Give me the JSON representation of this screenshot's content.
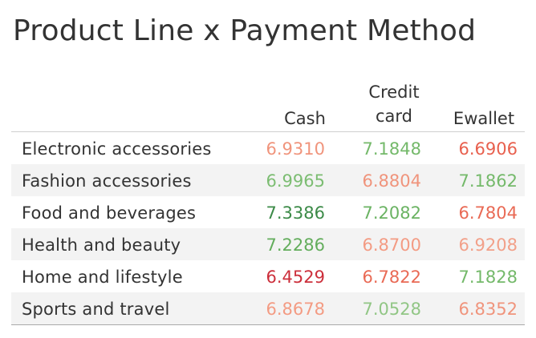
{
  "chart_data": {
    "type": "table",
    "title": "Product Line x Payment Method",
    "columns": [
      {
        "key": "cash",
        "line1": "",
        "line2": "Cash"
      },
      {
        "key": "credit",
        "line1": "Credit",
        "line2": "card"
      },
      {
        "key": "ewallet",
        "line1": "",
        "line2": "Ewallet"
      }
    ],
    "rows": [
      {
        "label": "Electronic accessories",
        "values": [
          "6.9310",
          "7.1848",
          "6.6906"
        ],
        "colors": [
          "#f0947c",
          "#74b96a",
          "#e8604e"
        ]
      },
      {
        "label": "Fashion accessories",
        "values": [
          "6.9965",
          "6.8804",
          "7.1862"
        ],
        "colors": [
          "#7cbd72",
          "#f0947c",
          "#74b96a"
        ]
      },
      {
        "label": "Food and beverages",
        "values": [
          "7.3386",
          "7.2082",
          "6.7804"
        ],
        "colors": [
          "#3b8a47",
          "#6bb363",
          "#e96a55"
        ]
      },
      {
        "label": "Health and beauty",
        "values": [
          "7.2286",
          "6.8700",
          "6.9208"
        ],
        "colors": [
          "#63ad5c",
          "#f39b83",
          "#f2a089"
        ]
      },
      {
        "label": "Home and lifestyle",
        "values": [
          "6.4529",
          "6.7822",
          "7.1828"
        ],
        "colors": [
          "#cc2f3b",
          "#e96a55",
          "#74b96a"
        ]
      },
      {
        "label": "Sports and travel",
        "values": [
          "6.8678",
          "7.0528",
          "6.8352"
        ],
        "colors": [
          "#f39b83",
          "#91c685",
          "#f0947c"
        ]
      }
    ]
  }
}
